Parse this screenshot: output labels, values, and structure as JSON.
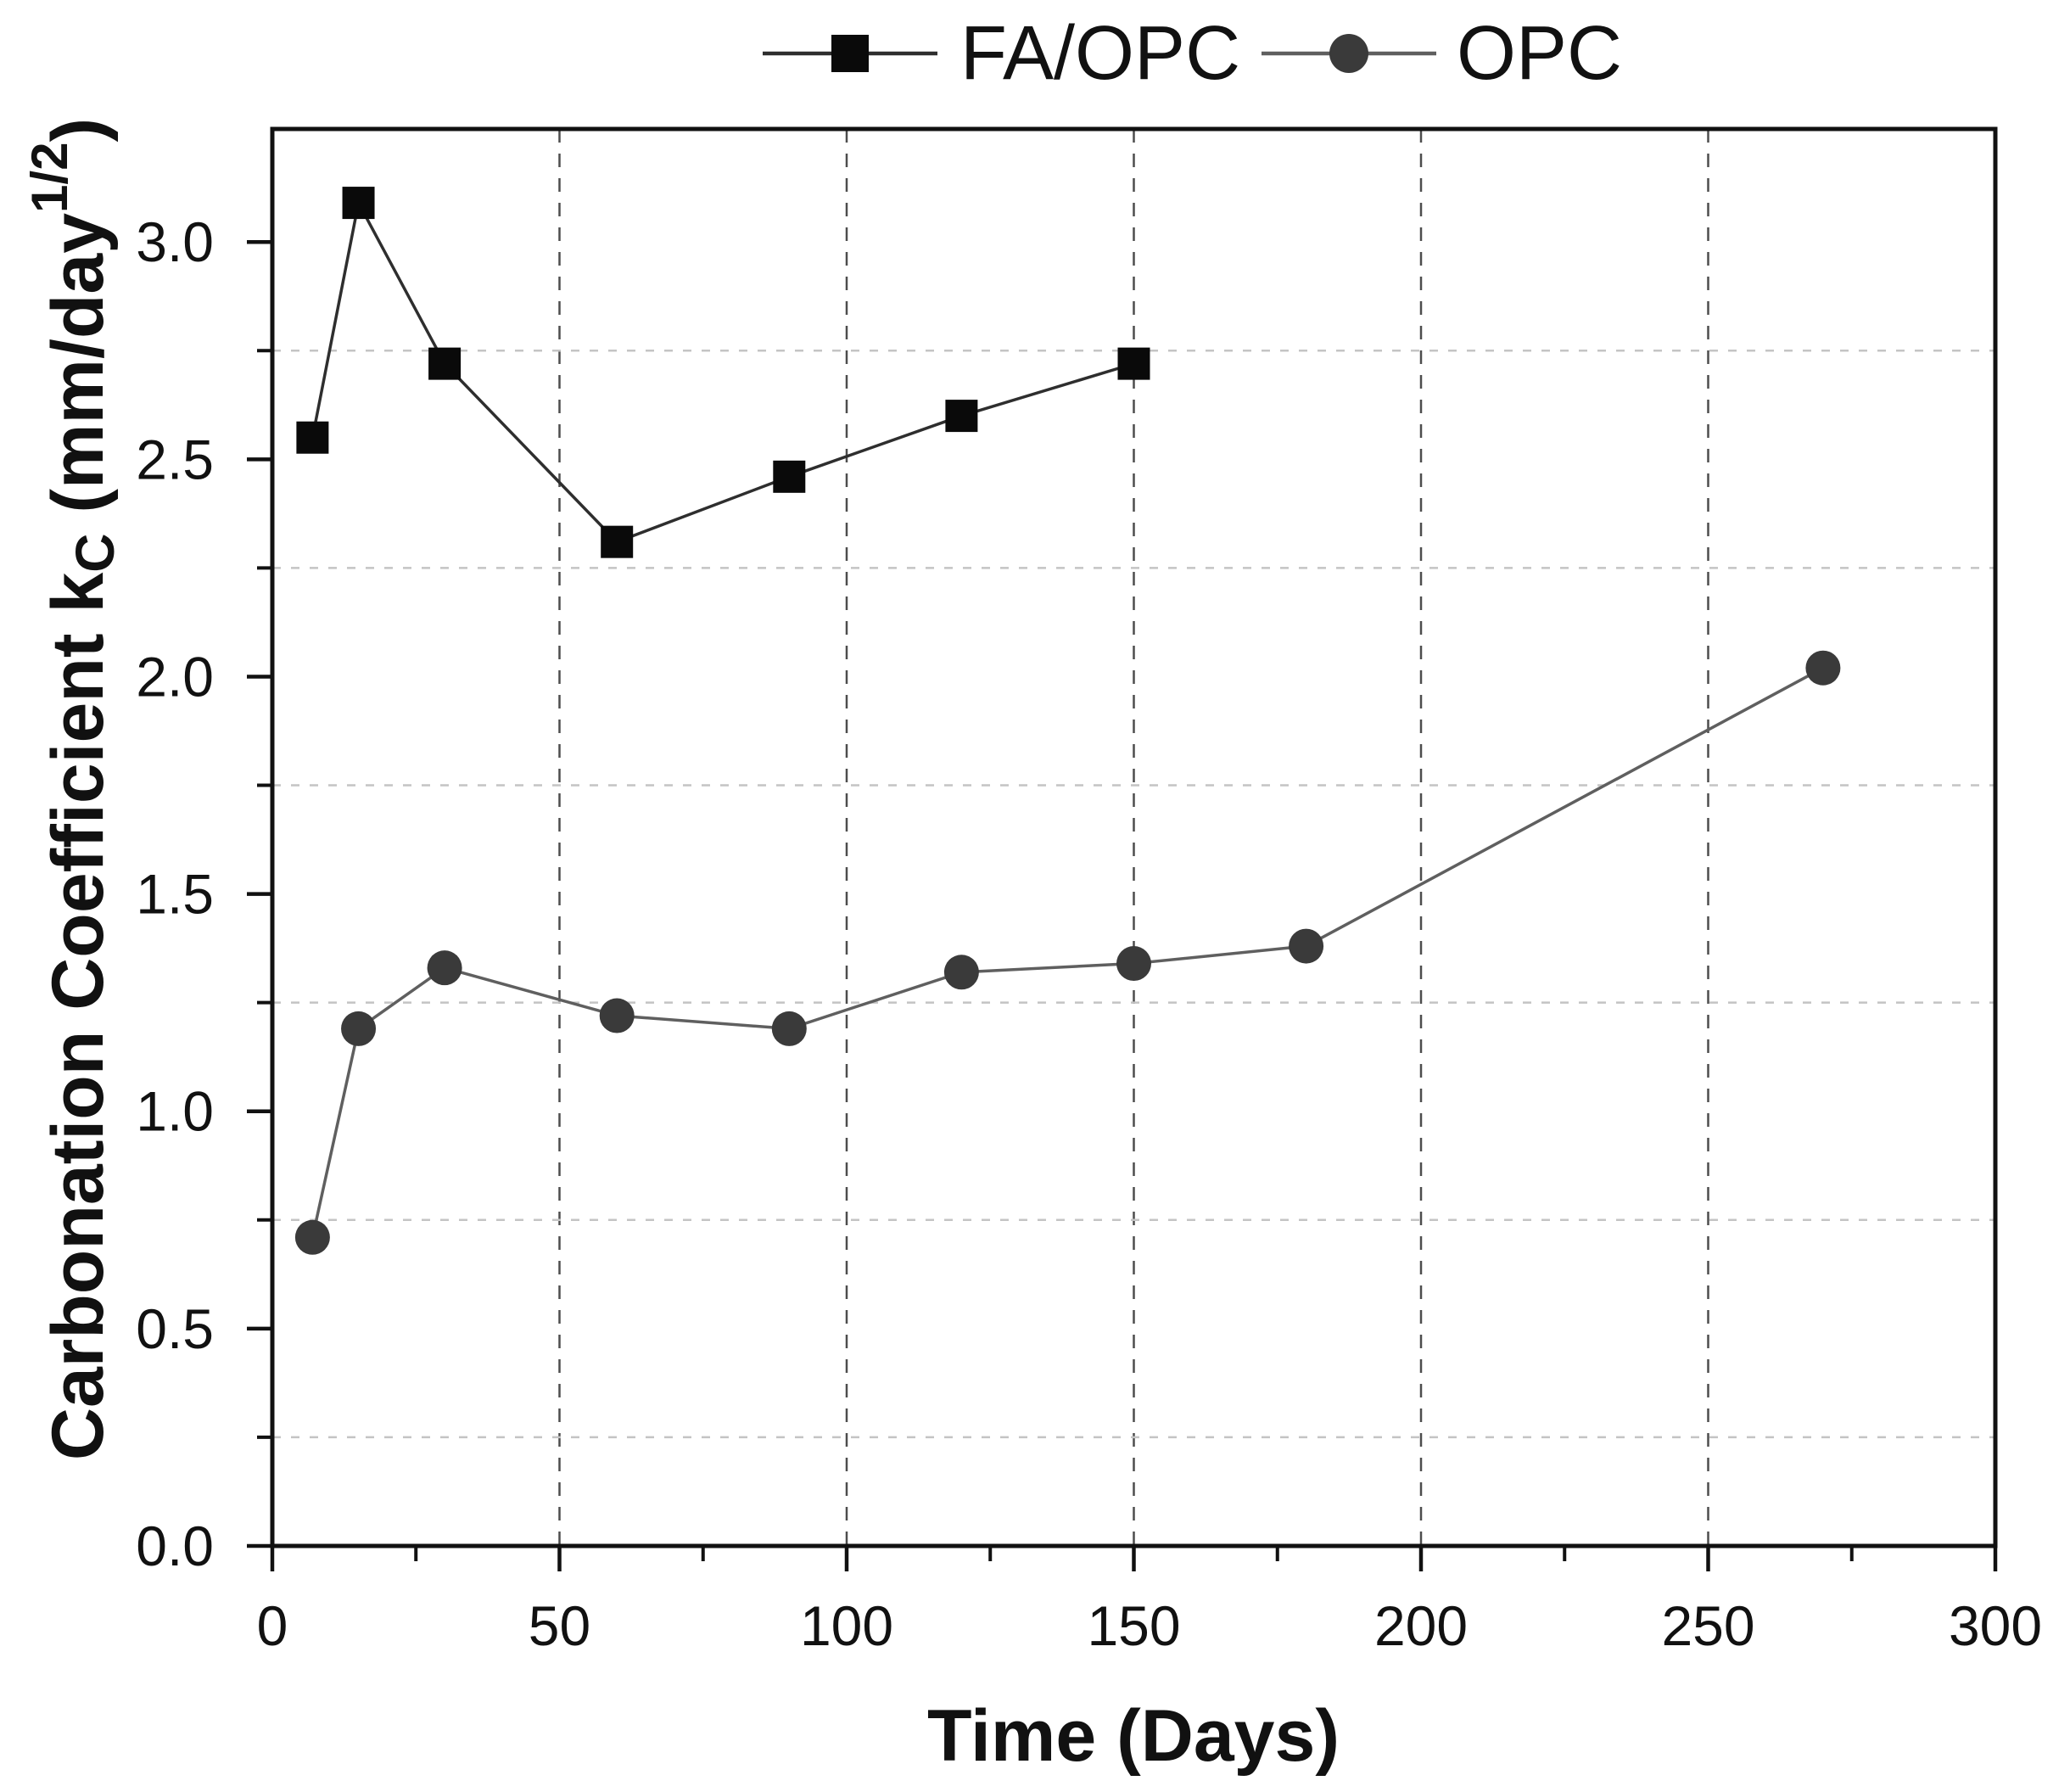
{
  "chart_data": {
    "type": "line",
    "title": "",
    "xlabel": "Time (Days)",
    "ylabel": "Carbonation Coefficient kC (mm/day1/2)",
    "ylabel_parts": {
      "main": "Carbonation Coefficient k",
      "sub": "C",
      "mid": " (mm/day",
      "sup": "1/2",
      "end": ")"
    },
    "xlim": [
      0,
      300
    ],
    "ylim": [
      0,
      3.26
    ],
    "x_major_ticks": [
      0,
      50,
      100,
      150,
      200,
      250,
      300
    ],
    "x_tick_labels": [
      "0",
      "50",
      "100",
      "150",
      "200",
      "250",
      "300"
    ],
    "x_minor_ticks": [
      25,
      75,
      125,
      175,
      225,
      275
    ],
    "y_major_ticks": [
      0.0,
      0.5,
      1.0,
      1.5,
      2.0,
      2.5,
      3.0
    ],
    "y_tick_labels": [
      "0.0",
      "0.5",
      "1.0",
      "1.5",
      "2.0",
      "2.5",
      "3.0"
    ],
    "y_minor_ticks": [
      0.25,
      0.75,
      1.25,
      1.75,
      2.25,
      2.75,
      3.25
    ],
    "grid": {
      "vertical_at": [
        50,
        100,
        150,
        200,
        250
      ],
      "horizontal_at": [
        0.25,
        0.75,
        1.25,
        1.75,
        2.25,
        2.75
      ]
    },
    "legend_position": "top-center",
    "series": [
      {
        "name": "FA/OPC",
        "marker": "square",
        "color": "#0a0a0a",
        "line_color": "#2e2e2e",
        "x": [
          7,
          15,
          30,
          60,
          90,
          120,
          150
        ],
        "y": [
          2.55,
          3.09,
          2.72,
          2.31,
          2.46,
          2.6,
          2.72
        ]
      },
      {
        "name": "OPC",
        "marker": "circle",
        "color": "#3a3a3a",
        "line_color": "#5f5f5f",
        "x": [
          7,
          15,
          30,
          60,
          90,
          120,
          150,
          180,
          270
        ],
        "y": [
          0.71,
          1.19,
          1.33,
          1.22,
          1.19,
          1.32,
          1.34,
          1.38,
          2.02
        ]
      }
    ]
  },
  "colors": {
    "axis": "#111111",
    "grid_vertical": "#4d4d4d",
    "grid_horizontal": "#c4c4c4",
    "background": "#ffffff",
    "text": "#111111"
  }
}
